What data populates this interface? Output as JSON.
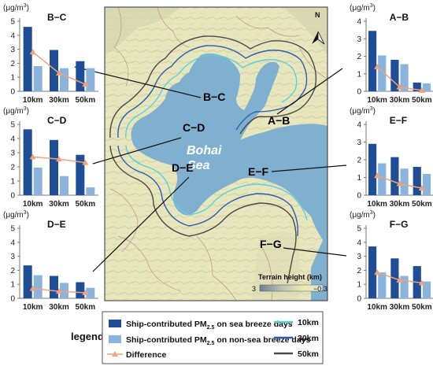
{
  "colors": {
    "sea_breeze": "#1f4e96",
    "non_sea_breeze": "#8ab4dc",
    "difference": "#f2a27a",
    "ring_10km": "#5ad1dc",
    "ring_30km": "#2c5db2",
    "ring_50km": "#4a4a4a",
    "sea": "#7fb0cf",
    "land": "#e9e7bf"
  },
  "map": {
    "sea_name_line1": "Bohai",
    "sea_name_line2": "Sea",
    "segment_labels": [
      "B−C",
      "A−B",
      "C−D",
      "D−E",
      "E−F",
      "F−G"
    ],
    "terrain_title": "Terrain height (km)",
    "terrain_min": "3",
    "terrain_max": "−0.3",
    "north_arrow": "N"
  },
  "legend": {
    "label": "legend",
    "sea_breeze_prefix": "Ship-contributed PM",
    "sea_breeze_sub": "2.5",
    "sea_breeze_suffix": " on sea breeze days",
    "non_sea_breeze_prefix": "Ship-contributed PM",
    "non_sea_breeze_sub": "2.5",
    "non_sea_breeze_suffix": " on non-sea breeze days",
    "difference": "Difference",
    "ring_10km": "10km",
    "ring_30km": "30km",
    "ring_50km": "50km"
  },
  "chart_data": [
    {
      "type": "bar",
      "title": "B−C",
      "unit_prefix": "(μg/m",
      "unit_sup": "3",
      "unit_suffix": ")",
      "categories": [
        "10km",
        "30km",
        "50km"
      ],
      "ylim": [
        0,
        5
      ],
      "yticks": [
        0,
        1,
        2,
        3,
        4,
        5
      ],
      "series": [
        {
          "key": "sea_breeze",
          "values": [
            4.6,
            2.95,
            2.15
          ]
        },
        {
          "key": "non_sea_breeze",
          "values": [
            1.8,
            1.65,
            1.65
          ]
        },
        {
          "key": "difference",
          "values": [
            2.8,
            1.3,
            0.5
          ]
        }
      ]
    },
    {
      "type": "bar",
      "title": "C−D",
      "unit_prefix": "(μg/m",
      "unit_sup": "3",
      "unit_suffix": ")",
      "categories": [
        "10km",
        "30km",
        "50km"
      ],
      "ylim": [
        0,
        5
      ],
      "yticks": [
        0,
        1,
        2,
        3,
        4,
        5
      ],
      "series": [
        {
          "key": "sea_breeze",
          "values": [
            4.65,
            3.9,
            2.85
          ]
        },
        {
          "key": "non_sea_breeze",
          "values": [
            1.95,
            1.35,
            0.55
          ]
        },
        {
          "key": "difference",
          "values": [
            2.7,
            2.55,
            2.3
          ]
        }
      ]
    },
    {
      "type": "bar",
      "title": "D−E",
      "unit_prefix": "(μg/m",
      "unit_sup": "3",
      "unit_suffix": ")",
      "categories": [
        "10km",
        "30km",
        "50km"
      ],
      "ylim": [
        0,
        5
      ],
      "yticks": [
        0,
        1,
        2,
        3,
        4,
        5
      ],
      "series": [
        {
          "key": "sea_breeze",
          "values": [
            2.35,
            1.6,
            1.15
          ]
        },
        {
          "key": "non_sea_breeze",
          "values": [
            1.65,
            1.1,
            0.75
          ]
        },
        {
          "key": "difference",
          "values": [
            0.7,
            0.5,
            0.4
          ]
        }
      ]
    },
    {
      "type": "bar",
      "title": "A−B",
      "unit_prefix": "(μg/m",
      "unit_sup": "3",
      "unit_suffix": ")",
      "categories": [
        "10km",
        "30km",
        "50km"
      ],
      "ylim": [
        0,
        4
      ],
      "yticks": [
        0,
        1,
        2,
        3,
        4
      ],
      "series": [
        {
          "key": "sea_breeze",
          "values": [
            3.45,
            1.8,
            0.5
          ]
        },
        {
          "key": "non_sea_breeze",
          "values": [
            2.05,
            1.55,
            0.45
          ]
        },
        {
          "key": "difference",
          "values": [
            1.4,
            0.25,
            0.05
          ]
        }
      ]
    },
    {
      "type": "bar",
      "title": "E−F",
      "unit_prefix": "(μg/m",
      "unit_sup": "3",
      "unit_suffix": ")",
      "categories": [
        "10km",
        "30km",
        "50km"
      ],
      "ylim": [
        0,
        4
      ],
      "yticks": [
        0,
        1,
        2,
        3,
        4
      ],
      "series": [
        {
          "key": "sea_breeze",
          "values": [
            2.9,
            2.15,
            1.6
          ]
        },
        {
          "key": "non_sea_breeze",
          "values": [
            1.8,
            1.5,
            1.2
          ]
        },
        {
          "key": "difference",
          "values": [
            1.1,
            0.65,
            0.4
          ]
        }
      ]
    },
    {
      "type": "bar",
      "title": "F−G",
      "unit_prefix": "(μg/m",
      "unit_sup": "3",
      "unit_suffix": ")",
      "categories": [
        "10km",
        "30km",
        "50km"
      ],
      "ylim": [
        0,
        5
      ],
      "yticks": [
        0,
        1,
        2,
        3,
        4,
        5
      ],
      "series": [
        {
          "key": "sea_breeze",
          "values": [
            3.7,
            2.85,
            2.3
          ]
        },
        {
          "key": "non_sea_breeze",
          "values": [
            1.85,
            1.6,
            1.2
          ]
        },
        {
          "key": "difference",
          "values": [
            1.85,
            1.3,
            1.1
          ]
        }
      ]
    }
  ]
}
